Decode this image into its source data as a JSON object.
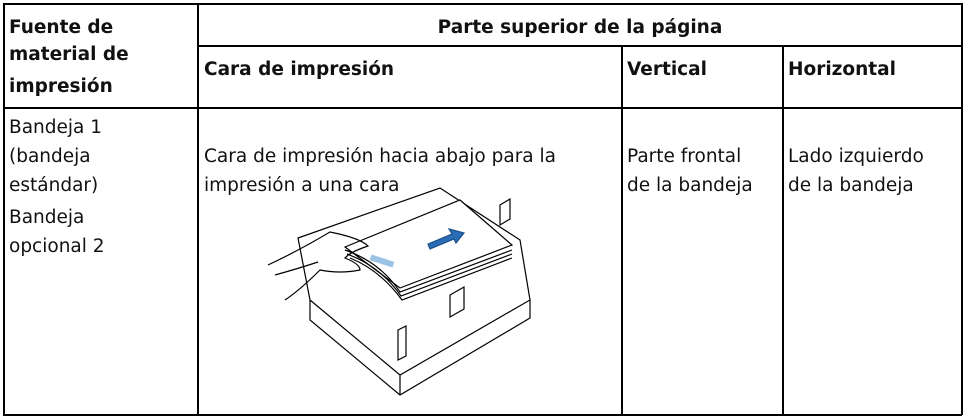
{
  "table": {
    "header": {
      "source": [
        "Fuente de",
        "material de",
        "impresión"
      ],
      "group": "Parte superior de la página",
      "columns": [
        "Cara de impresión",
        "Vertical",
        "Horizontal"
      ]
    },
    "rows": [
      {
        "source": [
          [
            "Bandeja 1",
            "(bandeja",
            "estándar)"
          ],
          [
            "Bandeja",
            "opcional 2"
          ]
        ],
        "face": [
          "Cara de impresión hacia abajo para la",
          "impresión a una cara"
        ],
        "vertical": [
          "Parte frontal",
          "de la bandeja"
        ],
        "horizontal": [
          "Lado izquierdo",
          "de la bandeja"
        ]
      }
    ]
  }
}
